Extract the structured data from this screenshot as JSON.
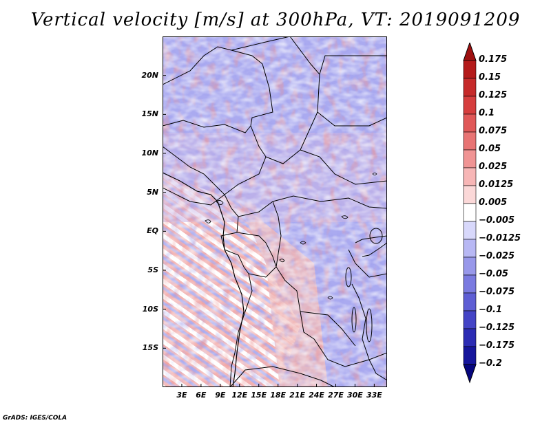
{
  "title": "Vertical velocity [m/s] at 300hPa, VT: 2019091209",
  "credit": "GrADS: IGES/COLA",
  "map": {
    "lat_range": [
      -20,
      25
    ],
    "lon_range": [
      0,
      35
    ],
    "lat_labels": [
      {
        "lat": 20,
        "text": "20N"
      },
      {
        "lat": 15,
        "text": "15N"
      },
      {
        "lat": 10,
        "text": "10N"
      },
      {
        "lat": 5,
        "text": "5N"
      },
      {
        "lat": 0,
        "text": "EQ"
      },
      {
        "lat": -5,
        "text": "5S"
      },
      {
        "lat": -10,
        "text": "10S"
      },
      {
        "lat": -15,
        "text": "15S"
      }
    ],
    "lon_labels": [
      {
        "lon": 3,
        "text": "3E"
      },
      {
        "lon": 6,
        "text": "6E"
      },
      {
        "lon": 9,
        "text": "9E"
      },
      {
        "lon": 12,
        "text": "12E"
      },
      {
        "lon": 15,
        "text": "15E"
      },
      {
        "lon": 18,
        "text": "18E"
      },
      {
        "lon": 21,
        "text": "21E"
      },
      {
        "lon": 24,
        "text": "24E"
      },
      {
        "lon": 27,
        "text": "27E"
      },
      {
        "lon": 30,
        "text": "30E"
      },
      {
        "lon": 33,
        "text": "33E"
      }
    ]
  },
  "colorbar": {
    "labels": [
      "0.175",
      "0.15",
      "0.125",
      "0.1",
      "0.075",
      "0.05",
      "0.025",
      "0.0125",
      "0.005",
      "−0.005",
      "−0.0125",
      "−0.025",
      "−0.05",
      "−0.075",
      "−0.1",
      "−0.125",
      "−0.175",
      "−0.2"
    ],
    "colors": [
      "#9e1010",
      "#b41a1a",
      "#c62a2a",
      "#d63e3e",
      "#e05858",
      "#e87474",
      "#f09494",
      "#f7b6b6",
      "#fbd8d8",
      "#ffffff",
      "#d8d8fb",
      "#b8b8f4",
      "#9898ea",
      "#7a7ae0",
      "#5e5ed4",
      "#4444c6",
      "#2c2cb4",
      "#16169c",
      "#06067e"
    ],
    "top_color": "#9e1010",
    "bottom_color": "#06067e"
  }
}
